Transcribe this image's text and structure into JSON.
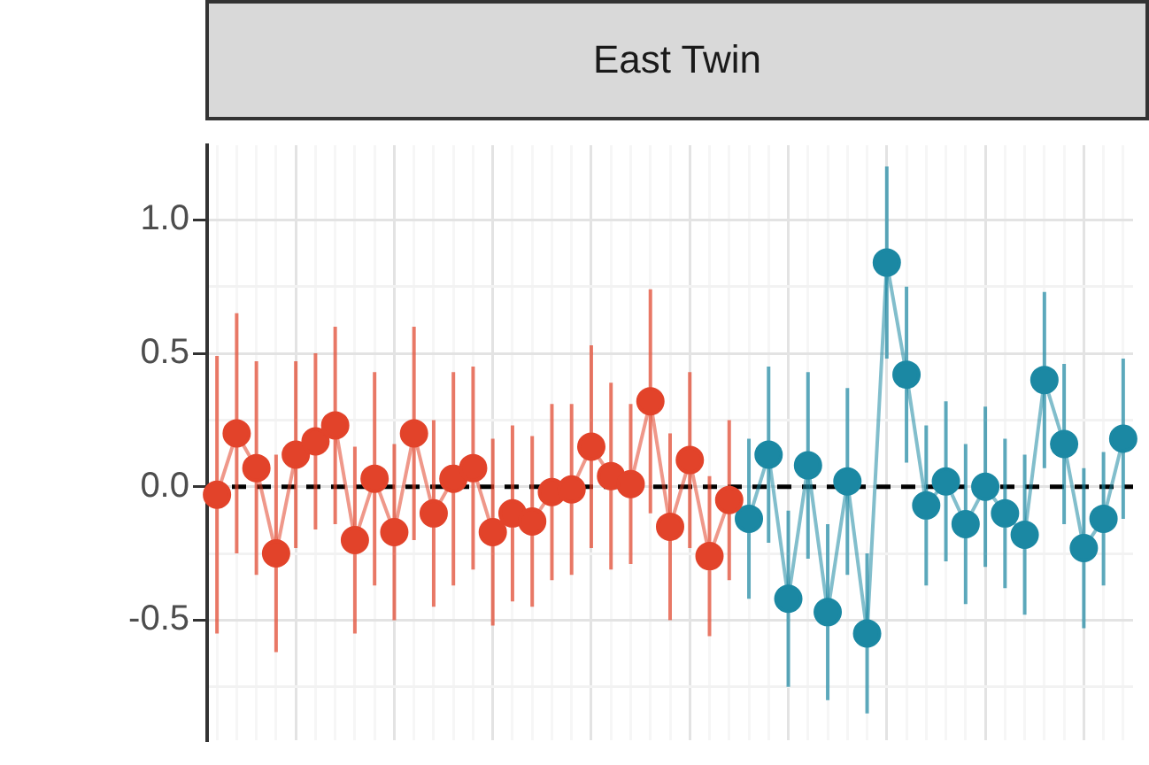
{
  "chart_data": {
    "type": "line",
    "title": "East Twin",
    "categories": [
      null,
      null,
      null,
      null,
      null,
      null,
      null,
      null,
      null,
      null,
      null,
      null,
      null,
      null,
      null,
      null,
      null,
      null,
      null,
      null,
      null,
      null,
      null,
      null,
      null,
      null,
      null,
      null,
      null,
      null,
      null,
      null,
      null,
      null,
      null,
      null,
      null,
      null,
      null,
      null,
      null,
      null,
      null,
      null,
      null,
      null,
      null
    ],
    "series": [
      {
        "color": "#e2432a",
        "values": [
          -0.03,
          0.2,
          0.07,
          -0.25,
          0.12,
          0.17,
          0.23,
          -0.2,
          0.03,
          -0.17,
          0.2,
          -0.1,
          0.03,
          0.07,
          -0.17,
          -0.1,
          -0.13,
          -0.02,
          -0.01,
          0.15,
          0.04,
          0.01,
          0.32,
          -0.15,
          0.1,
          -0.26,
          -0.05,
          null,
          null,
          null,
          null,
          null,
          null,
          null,
          null,
          null,
          null,
          null,
          null,
          null,
          null,
          null,
          null,
          null,
          null,
          null,
          null
        ],
        "errors": [
          0.52,
          0.45,
          0.4,
          0.37,
          0.35,
          0.33,
          0.37,
          0.35,
          0.4,
          0.33,
          0.4,
          0.35,
          0.4,
          0.38,
          0.35,
          0.33,
          0.32,
          0.33,
          0.32,
          0.38,
          0.35,
          0.3,
          0.42,
          0.35,
          0.33,
          0.3,
          0.3,
          null,
          null,
          null,
          null,
          null,
          null,
          null,
          null,
          null,
          null,
          null,
          null,
          null,
          null,
          null,
          null,
          null,
          null,
          null,
          null
        ]
      },
      {
        "color": "#1b88a3",
        "values": [
          null,
          null,
          null,
          null,
          null,
          null,
          null,
          null,
          null,
          null,
          null,
          null,
          null,
          null,
          null,
          null,
          null,
          null,
          null,
          null,
          null,
          null,
          null,
          null,
          null,
          null,
          null,
          -0.12,
          0.12,
          -0.42,
          0.08,
          -0.47,
          0.02,
          -0.55,
          0.84,
          0.42,
          -0.07,
          0.02,
          -0.14,
          0.0,
          -0.1,
          -0.18,
          0.4,
          0.16,
          -0.23,
          -0.12,
          0.18
        ],
        "errors": [
          null,
          null,
          null,
          null,
          null,
          null,
          null,
          null,
          null,
          null,
          null,
          null,
          null,
          null,
          null,
          null,
          null,
          null,
          null,
          null,
          null,
          null,
          null,
          null,
          null,
          null,
          null,
          0.3,
          0.33,
          0.33,
          0.35,
          0.33,
          0.35,
          0.3,
          0.36,
          0.33,
          0.3,
          0.3,
          0.3,
          0.3,
          0.28,
          0.3,
          0.33,
          0.3,
          0.3,
          0.25,
          0.3
        ]
      }
    ],
    "ylim": [
      -0.95,
      1.28
    ],
    "yticks": [
      {
        "value": -0.75,
        "label": null
      },
      {
        "value": -0.5,
        "label": "-0.5"
      },
      {
        "value": -0.25,
        "label": null
      },
      {
        "value": 0,
        "label": "0.0"
      },
      {
        "value": 0.25,
        "label": null
      },
      {
        "value": 0.5,
        "label": "0.5"
      },
      {
        "value": 0.75,
        "label": null
      },
      {
        "value": 1,
        "label": "1.0"
      }
    ],
    "ref_lines": [
      {
        "axis": "y",
        "value": 0,
        "color": "#000000",
        "line_style": "dashed"
      }
    ],
    "grid": true,
    "marker": "circle",
    "line_style": "solid",
    "tick_labels": "y",
    "legend": false
  }
}
